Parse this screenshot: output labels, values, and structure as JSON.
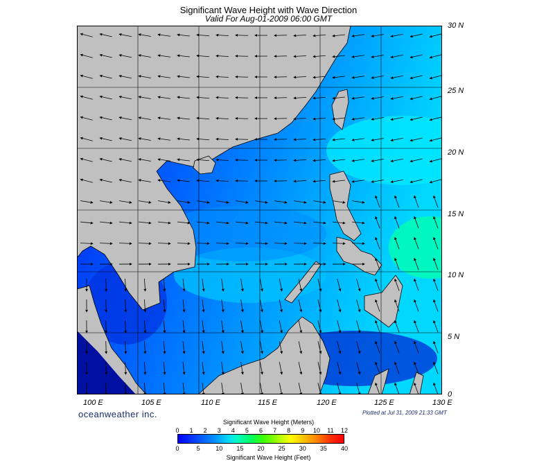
{
  "title": "Significant Wave Height with Wave Direction",
  "subtitle": "Valid For Aug-01-2009 06:00 GMT",
  "lat_labels": [
    "30 N",
    "25 N",
    "20 N",
    "15 N",
    "10 N",
    "5 N",
    "0"
  ],
  "lon_labels": [
    "100 E",
    "105 E",
    "110 E",
    "115 E",
    "120 E",
    "125 E",
    "130 E"
  ],
  "brand": "oceanweather inc.",
  "plotted": "Plotted at Jul 31, 2009 21:33 GMT",
  "colorbar": {
    "title_top": "Significant Wave Height (Meters)",
    "title_bottom": "Significant Wave Height (Feet)",
    "meters": [
      "0",
      "1",
      "2",
      "3",
      "4",
      "5",
      "6",
      "7",
      "8",
      "9",
      "10",
      "11",
      "12"
    ],
    "feet": [
      "0",
      "5",
      "10",
      "15",
      "20",
      "25",
      "30",
      "35",
      "40"
    ]
  },
  "colors": {
    "land": "#c0c0c0",
    "coast": "#000000",
    "sea_low": "#0000e0",
    "sea_mid": "#0090ff",
    "sea_high": "#00ffd0"
  },
  "chart_data": {
    "type": "heatmap",
    "variable": "significant wave height (m) with wave direction arrows",
    "lon_range": [
      100,
      130
    ],
    "lat_range": [
      0,
      30
    ],
    "grid_lines_lon": [
      105,
      110,
      115,
      120,
      125
    ],
    "grid_lines_lat": [
      5,
      10,
      15,
      20,
      25
    ],
    "value_range_m": [
      0,
      12
    ]
  }
}
